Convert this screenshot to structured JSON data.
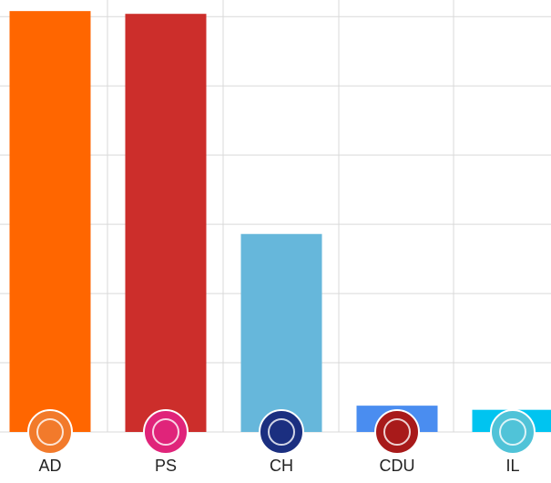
{
  "chart_data": {
    "type": "bar",
    "categories": [
      "AD",
      "PS",
      "CH",
      "CDU",
      "IL"
    ],
    "values": [
      30.4,
      30.2,
      14.3,
      1.9,
      1.6
    ],
    "colors": [
      "#ff6600",
      "#cc2e2b",
      "#66b7db",
      "#4a8df0",
      "#00c4f0"
    ],
    "ylim": [
      0,
      31.2
    ],
    "yticks": [
      0,
      5,
      10,
      15,
      20,
      25,
      30
    ],
    "grid": true
  }
}
